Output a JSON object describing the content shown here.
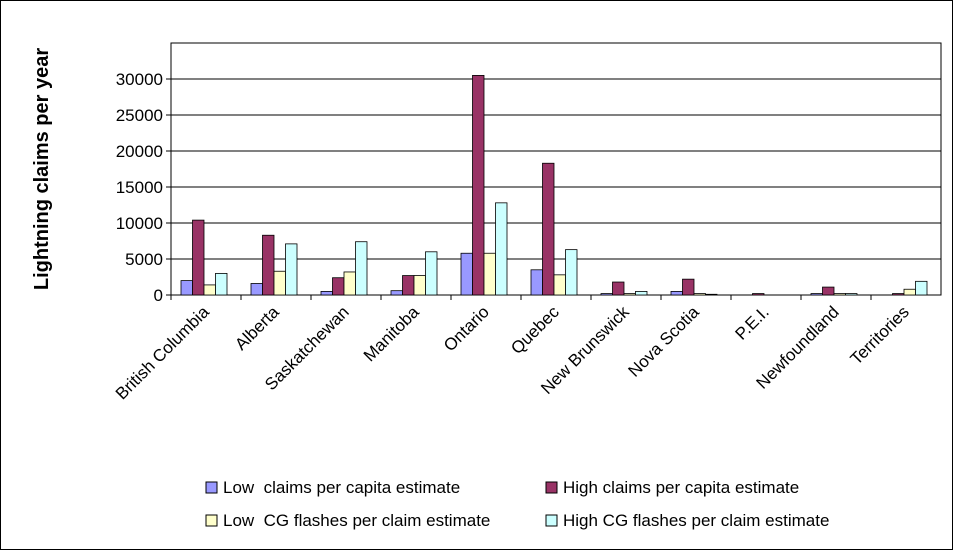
{
  "chart_data": {
    "type": "bar",
    "title": "",
    "xlabel": "",
    "ylabel": "Lightning claims per year",
    "ylim": [
      0,
      35000
    ],
    "yticks": [
      0,
      5000,
      10000,
      15000,
      20000,
      25000,
      30000
    ],
    "grid": true,
    "legend_position": "bottom",
    "categories": [
      "British Columbia",
      "Alberta",
      "Saskatchewan",
      "Manitoba",
      "Ontario",
      "Quebec",
      "New Brunswick",
      "Nova Scotia",
      "P.E.I.",
      "Newfoundland",
      "Territories"
    ],
    "series": [
      {
        "name": "Low  claims per capita estimate",
        "color": "#9999ff",
        "values": [
          2000,
          1600,
          500,
          600,
          5800,
          3500,
          200,
          500,
          0,
          200,
          0
        ]
      },
      {
        "name": "High claims per capita estimate",
        "color": "#993366",
        "values": [
          10400,
          8300,
          2400,
          2700,
          30500,
          18300,
          1800,
          2200,
          200,
          1100,
          200
        ]
      },
      {
        "name": "Low  CG flashes per claim estimate",
        "color": "#ffffcc",
        "values": [
          1400,
          3300,
          3200,
          2700,
          5800,
          2800,
          200,
          200,
          0,
          200,
          800
        ]
      },
      {
        "name": "High CG flashes per claim estimate",
        "color": "#ccffff",
        "values": [
          3000,
          7100,
          7400,
          6000,
          12800,
          6300,
          500,
          100,
          0,
          200,
          1900
        ]
      }
    ]
  }
}
